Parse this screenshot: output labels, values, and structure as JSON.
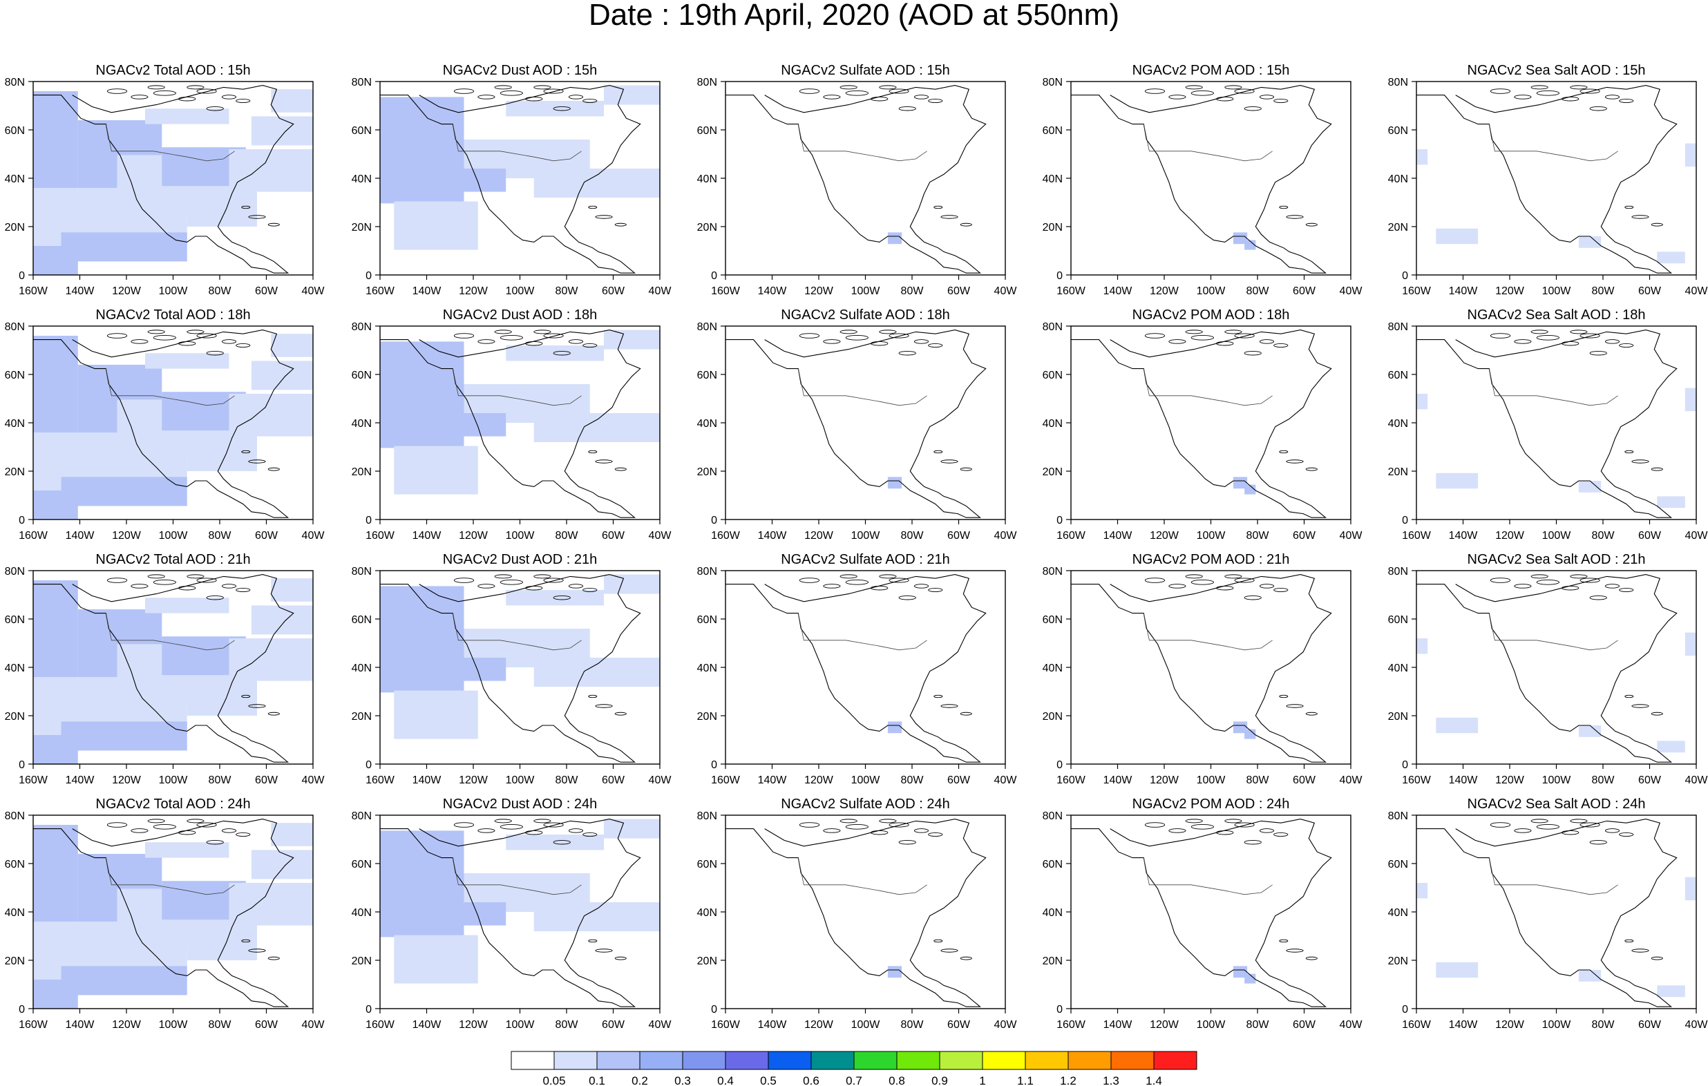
{
  "title": "Date : 19th April, 2020 (AOD at 550nm)",
  "colorscale": {
    "labels": [
      "0.05",
      "0.1",
      "0.2",
      "0.3",
      "0.4",
      "0.5",
      "0.6",
      "0.7",
      "0.8",
      "0.9",
      "1",
      "1.1",
      "1.2",
      "1.3",
      "1.4"
    ],
    "colors": [
      "#ffffff",
      "#d6e0fa",
      "#b3c3f7",
      "#96aff5",
      "#7f95f0",
      "#6a6ae8",
      "#0a5ff0",
      "#008f8f",
      "#2dd62d",
      "#6fe80a",
      "#b8f03c",
      "#ffff00",
      "#ffc800",
      "#ff9c00",
      "#ff6e00",
      "#ff1e1e"
    ]
  },
  "axes": {
    "lon_ticks": [
      "160W",
      "140W",
      "120W",
      "100W",
      "80W",
      "60W",
      "40W"
    ],
    "lat_ticks": [
      "80N",
      "60N",
      "40N",
      "20N",
      "0"
    ]
  },
  "panels": [
    [
      "NGACv2 Total AOD : 15h",
      "NGACv2 Dust AOD : 15h",
      "NGACv2 Sulfate AOD : 15h",
      "NGACv2 POM AOD : 15h",
      "NGACv2 Sea Salt AOD : 15h"
    ],
    [
      "NGACv2 Total AOD : 18h",
      "NGACv2 Dust AOD : 18h",
      "NGACv2 Sulfate AOD : 18h",
      "NGACv2 POM AOD : 18h",
      "NGACv2 Sea Salt AOD : 18h"
    ],
    [
      "NGACv2 Total AOD : 21h",
      "NGACv2 Dust AOD : 21h",
      "NGACv2 Sulfate AOD : 21h",
      "NGACv2 POM AOD : 21h",
      "NGACv2 Sea Salt AOD : 21h"
    ],
    [
      "NGACv2 Total AOD : 24h",
      "NGACv2 Dust AOD : 24h",
      "NGACv2 Sulfate AOD : 24h",
      "NGACv2 POM AOD : 24h",
      "NGACv2 Sea Salt  AOD : 24h"
    ]
  ]
}
